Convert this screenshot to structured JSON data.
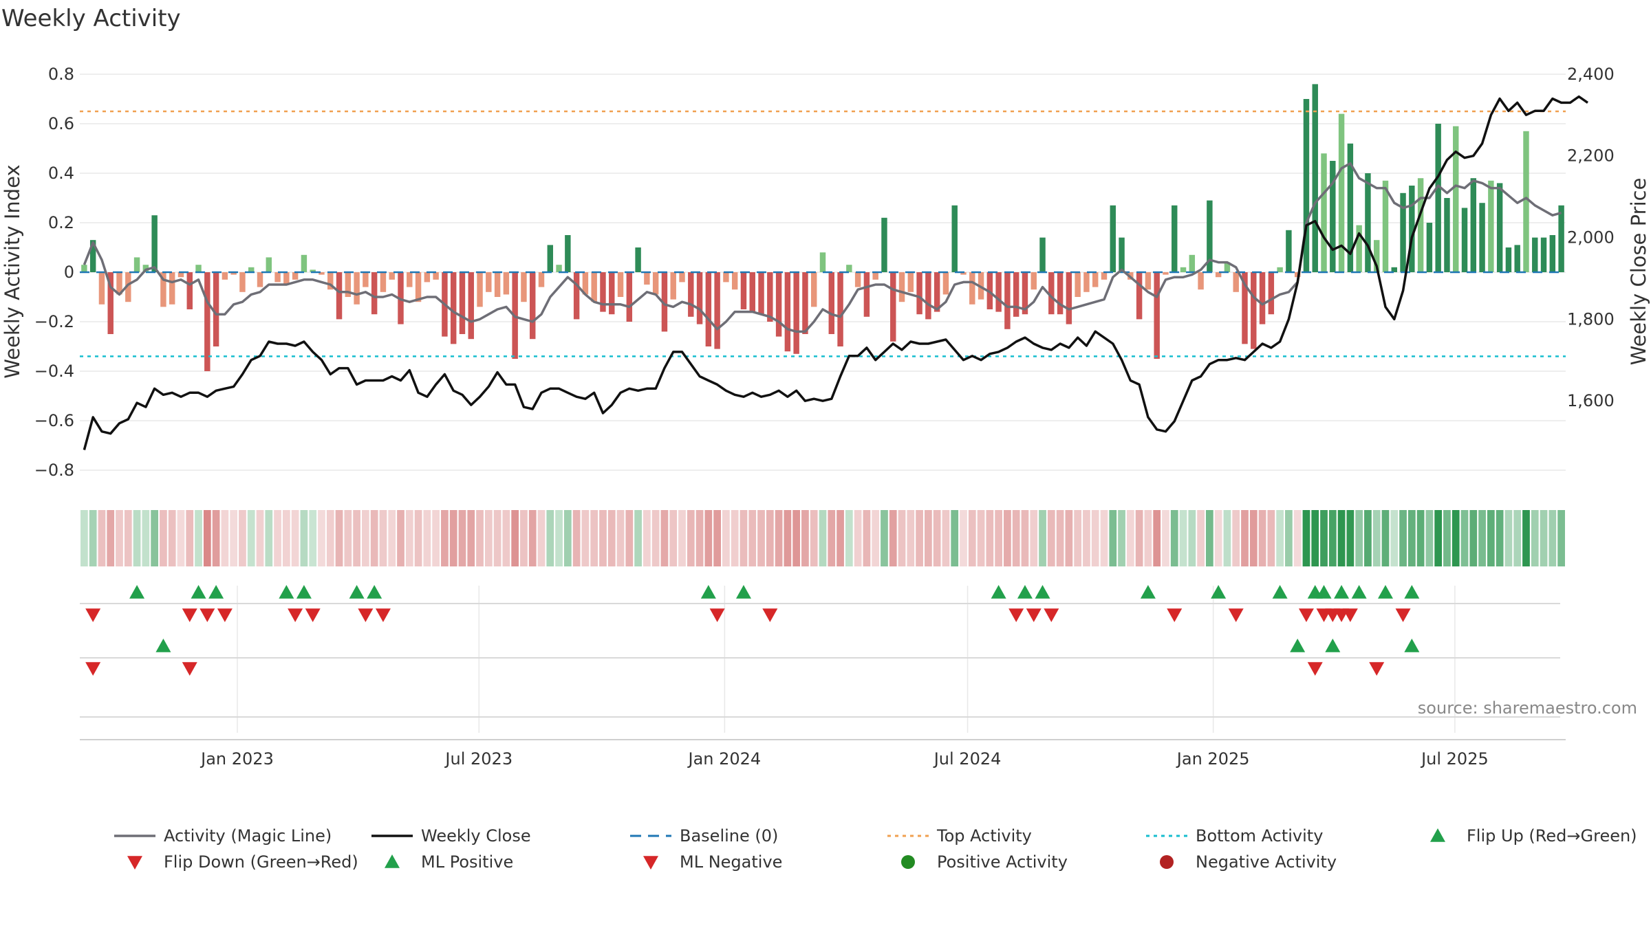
{
  "chart_data": {
    "type": "bar",
    "title": "Weekly Activity",
    "ylabel": "Weekly Activity Index",
    "y2label": "Weekly Close Price",
    "ylim": [
      -0.85,
      0.85
    ],
    "y2lim": [
      1400,
      2430
    ],
    "yticks": [
      0.8,
      0.6,
      0.4,
      0.2,
      0,
      -0.2,
      -0.4,
      -0.6,
      -0.8
    ],
    "ytick_labels": [
      "0.8",
      "0.6",
      "0.4",
      "0.2",
      "0",
      "−0.2",
      "−0.4",
      "−0.6",
      "−0.8"
    ],
    "y2ticks": [
      2400,
      2200,
      2000,
      1800,
      1600
    ],
    "y2tick_labels": [
      "2,400",
      "2,200",
      "2,000",
      "1,800",
      "1,600"
    ],
    "x_start": "2022-09-05",
    "x_end": "2025-09-22",
    "xticks": [
      {
        "date": "2023-01-01",
        "label": "Jan 2023"
      },
      {
        "date": "2023-07-01",
        "label": "Jul 2023"
      },
      {
        "date": "2024-01-01",
        "label": "Jan 2024"
      },
      {
        "date": "2024-07-01",
        "label": "Jul 2024"
      },
      {
        "date": "2025-01-01",
        "label": "Jan 2025"
      },
      {
        "date": "2025-07-01",
        "label": "Jul 2025"
      }
    ],
    "top_activity": 0.65,
    "bottom_activity": -0.34,
    "baseline": 0,
    "activity_values": [
      0.03,
      0.13,
      -0.13,
      -0.25,
      -0.09,
      -0.12,
      0.06,
      0.03,
      0.23,
      -0.14,
      -0.13,
      -0.02,
      -0.15,
      0.03,
      -0.4,
      -0.3,
      -0.03,
      -0.01,
      -0.08,
      0.02,
      -0.06,
      0.06,
      -0.04,
      -0.05,
      -0.03,
      0.07,
      0.01,
      -0.01,
      -0.07,
      -0.19,
      -0.1,
      -0.13,
      -0.06,
      -0.17,
      -0.08,
      -0.03,
      -0.21,
      -0.06,
      -0.12,
      -0.04,
      -0.03,
      -0.26,
      -0.29,
      -0.25,
      -0.27,
      -0.14,
      -0.08,
      -0.1,
      -0.09,
      -0.35,
      -0.12,
      -0.27,
      -0.06,
      0.11,
      0.03,
      0.15,
      -0.19,
      -0.09,
      -0.12,
      -0.16,
      -0.17,
      -0.1,
      -0.2,
      0.1,
      -0.05,
      -0.09,
      -0.24,
      -0.11,
      -0.04,
      -0.18,
      -0.21,
      -0.3,
      -0.31,
      -0.04,
      -0.07,
      -0.15,
      -0.16,
      -0.17,
      -0.2,
      -0.26,
      -0.32,
      -0.33,
      -0.25,
      -0.14,
      0.08,
      -0.25,
      -0.3,
      0.03,
      -0.06,
      -0.18,
      -0.03,
      0.22,
      -0.28,
      -0.12,
      -0.08,
      -0.17,
      -0.19,
      -0.16,
      -0.09,
      0.27,
      -0.01,
      -0.13,
      -0.11,
      -0.15,
      -0.16,
      -0.23,
      -0.18,
      -0.17,
      -0.07,
      0.14,
      -0.17,
      -0.17,
      -0.21,
      -0.1,
      -0.08,
      -0.06,
      -0.03,
      0.27,
      0.14,
      -0.03,
      -0.19,
      -0.07,
      -0.35,
      -0.01,
      0.27,
      0.02,
      0.07,
      -0.07,
      0.29,
      -0.02,
      0.04,
      -0.08,
      -0.29,
      -0.31,
      -0.21,
      -0.17,
      0.02,
      0.17,
      -0.02,
      0.7,
      0.76,
      0.48,
      0.45,
      0.64,
      0.52,
      0.19,
      0.4,
      0.13,
      0.37,
      0.02,
      0.32,
      0.35,
      0.38,
      0.2,
      0.6,
      0.3,
      0.59,
      0.26,
      0.38,
      0.28,
      0.37,
      0.36,
      0.1,
      0.11,
      0.57,
      0.14,
      0.14,
      0.15,
      0.27
    ],
    "magic_line": [
      0.03,
      0.12,
      0.05,
      -0.06,
      -0.09,
      -0.05,
      -0.03,
      0.01,
      0.02,
      -0.03,
      -0.04,
      -0.03,
      -0.05,
      -0.03,
      -0.12,
      -0.17,
      -0.17,
      -0.13,
      -0.12,
      -0.09,
      -0.08,
      -0.05,
      -0.05,
      -0.05,
      -0.04,
      -0.03,
      -0.03,
      -0.04,
      -0.05,
      -0.08,
      -0.08,
      -0.09,
      -0.08,
      -0.1,
      -0.1,
      -0.09,
      -0.11,
      -0.12,
      -0.11,
      -0.1,
      -0.1,
      -0.13,
      -0.16,
      -0.18,
      -0.2,
      -0.19,
      -0.17,
      -0.15,
      -0.14,
      -0.18,
      -0.19,
      -0.2,
      -0.17,
      -0.1,
      -0.06,
      -0.02,
      -0.05,
      -0.09,
      -0.12,
      -0.13,
      -0.13,
      -0.13,
      -0.14,
      -0.11,
      -0.08,
      -0.09,
      -0.13,
      -0.14,
      -0.12,
      -0.13,
      -0.15,
      -0.19,
      -0.23,
      -0.2,
      -0.16,
      -0.16,
      -0.16,
      -0.17,
      -0.18,
      -0.2,
      -0.23,
      -0.24,
      -0.24,
      -0.2,
      -0.15,
      -0.17,
      -0.18,
      -0.13,
      -0.07,
      -0.06,
      -0.05,
      -0.05,
      -0.07,
      -0.08,
      -0.09,
      -0.1,
      -0.13,
      -0.15,
      -0.12,
      -0.05,
      -0.04,
      -0.04,
      -0.06,
      -0.08,
      -0.11,
      -0.14,
      -0.14,
      -0.15,
      -0.12,
      -0.06,
      -0.1,
      -0.13,
      -0.15,
      -0.14,
      -0.13,
      -0.12,
      -0.11,
      -0.02,
      0.01,
      -0.02,
      -0.05,
      -0.08,
      -0.1,
      -0.03,
      -0.02,
      -0.02,
      -0.01,
      0.01,
      0.05,
      0.04,
      0.04,
      0.02,
      -0.05,
      -0.1,
      -0.13,
      -0.11,
      -0.09,
      -0.08,
      -0.04,
      0.2,
      0.28,
      0.32,
      0.36,
      0.42,
      0.44,
      0.38,
      0.36,
      0.34,
      0.34,
      0.28,
      0.26,
      0.27,
      0.3,
      0.3,
      0.35,
      0.32,
      0.35,
      0.34,
      0.37,
      0.36,
      0.34,
      0.34,
      0.31,
      0.28,
      0.3,
      0.27,
      0.25,
      0.23,
      0.24
    ],
    "weekly_close": [
      1480,
      1560,
      1525,
      1520,
      1545,
      1555,
      1595,
      1585,
      1630,
      1615,
      1620,
      1610,
      1620,
      1620,
      1610,
      1625,
      1630,
      1635,
      1665,
      1700,
      1710,
      1745,
      1740,
      1740,
      1735,
      1745,
      1720,
      1700,
      1665,
      1680,
      1680,
      1640,
      1650,
      1650,
      1650,
      1660,
      1650,
      1675,
      1620,
      1610,
      1640,
      1665,
      1625,
      1615,
      1590,
      1610,
      1635,
      1670,
      1640,
      1640,
      1585,
      1580,
      1620,
      1630,
      1630,
      1620,
      1610,
      1605,
      1620,
      1570,
      1590,
      1620,
      1630,
      1625,
      1630,
      1630,
      1680,
      1720,
      1720,
      1690,
      1660,
      1650,
      1640,
      1625,
      1615,
      1610,
      1620,
      1610,
      1615,
      1625,
      1610,
      1625,
      1600,
      1605,
      1600,
      1605,
      1660,
      1710,
      1710,
      1730,
      1700,
      1720,
      1740,
      1725,
      1745,
      1740,
      1740,
      1745,
      1750,
      1725,
      1700,
      1710,
      1700,
      1715,
      1720,
      1730,
      1745,
      1755,
      1740,
      1730,
      1725,
      1740,
      1730,
      1755,
      1735,
      1770,
      1755,
      1740,
      1700,
      1650,
      1640,
      1560,
      1530,
      1525,
      1550,
      1600,
      1650,
      1660,
      1690,
      1700,
      1700,
      1705,
      1700,
      1720,
      1740,
      1730,
      1745,
      1800,
      1890,
      2030,
      2040,
      2000,
      1970,
      1980,
      1960,
      2010,
      1980,
      1930,
      1830,
      1800,
      1870,
      2000,
      2060,
      2120,
      2150,
      2190,
      2210,
      2195,
      2200,
      2230,
      2300,
      2340,
      2310,
      2330,
      2300,
      2310,
      2310,
      2340,
      2330,
      2330,
      2345,
      2330
    ],
    "shade_values": [
      0.03,
      0.13,
      -0.13,
      -0.25,
      -0.09,
      -0.12,
      0.06,
      0.03,
      0.23,
      -0.14,
      -0.13,
      -0.02,
      -0.15,
      0.03,
      -0.4,
      -0.3,
      -0.03,
      -0.01,
      -0.08,
      0.02,
      -0.06,
      0.06,
      -0.04,
      -0.05,
      -0.03,
      0.07,
      0.01,
      -0.01,
      -0.07,
      -0.19,
      -0.1,
      -0.13,
      -0.06,
      -0.17,
      -0.08,
      -0.03,
      -0.21,
      -0.06,
      -0.12,
      -0.04,
      -0.03,
      -0.26,
      -0.29,
      -0.25,
      -0.27,
      -0.14,
      -0.08,
      -0.1,
      -0.09,
      -0.35,
      -0.12,
      -0.27,
      -0.06,
      0.11,
      0.03,
      0.15,
      -0.19,
      -0.09,
      -0.12,
      -0.16,
      -0.17,
      -0.1,
      -0.2,
      0.1,
      -0.05,
      -0.09,
      -0.24,
      -0.11,
      -0.04,
      -0.18,
      -0.21,
      -0.3,
      -0.31,
      -0.04,
      -0.07,
      -0.15,
      -0.16,
      -0.17,
      -0.2,
      -0.26,
      -0.32,
      -0.33,
      -0.25,
      -0.14,
      0.08,
      -0.25,
      -0.3,
      0.03,
      -0.06,
      -0.18,
      -0.03,
      0.22,
      -0.28,
      -0.12,
      -0.08,
      -0.17,
      -0.19,
      -0.16,
      -0.09,
      0.27,
      -0.01,
      -0.13,
      -0.11,
      -0.15,
      -0.16,
      -0.23,
      -0.18,
      -0.17,
      -0.07,
      0.14,
      -0.17,
      -0.17,
      -0.21,
      -0.1,
      -0.08,
      -0.06,
      -0.03,
      0.27,
      0.14,
      -0.03,
      -0.19,
      -0.07,
      -0.35,
      -0.01,
      0.27,
      0.02,
      0.07,
      -0.07,
      0.29,
      -0.02,
      0.04,
      -0.08,
      -0.29,
      -0.31,
      -0.21,
      -0.17,
      0.02,
      0.17,
      -0.02,
      0.7,
      0.76,
      0.48,
      0.45,
      0.64,
      0.52,
      0.19,
      0.4,
      0.13,
      0.37,
      0.02,
      0.32,
      0.35,
      0.38,
      0.2,
      0.6,
      0.3,
      0.59,
      0.26,
      0.38,
      0.28,
      0.37,
      0.36,
      0.1,
      0.11,
      0.57,
      0.14,
      0.14,
      0.15,
      0.27
    ],
    "flip_up_weeks": [
      6,
      13,
      15,
      23,
      25,
      31,
      33,
      71,
      75,
      104,
      107,
      109,
      121,
      129,
      136,
      140,
      141,
      143,
      145,
      148,
      151
    ],
    "flip_down_weeks": [
      1,
      12,
      14,
      16,
      24,
      26,
      32,
      34,
      72,
      78,
      106,
      108,
      110,
      124,
      131,
      139,
      141,
      142,
      143,
      144,
      150
    ],
    "ml_positive_weeks": [
      9,
      138,
      142,
      151
    ],
    "ml_negative_weeks": [
      1,
      12,
      140,
      147
    ],
    "colors": {
      "pos_strong": "#2e8b57",
      "pos_weak": "#7fc47f",
      "neg_strong": "#cc5555",
      "neg_weak": "#e8967a",
      "magic_line": "#6e6e76",
      "weekly_close": "#111111",
      "baseline": "#1f77b4",
      "top_activity": "#f0a050",
      "bottom_activity": "#17becf",
      "marker_up": "#22a04b",
      "marker_down": "#d62728"
    },
    "legend": [
      {
        "label": "Activity (Magic Line)",
        "kind": "line",
        "color": "#6e6e76"
      },
      {
        "label": "Weekly Close",
        "kind": "line",
        "color": "#111111"
      },
      {
        "label": "Baseline (0)",
        "kind": "dash",
        "color": "#1f77b4"
      },
      {
        "label": "Top Activity",
        "kind": "dot",
        "color": "#f0a050"
      },
      {
        "label": "Bottom Activity",
        "kind": "dot",
        "color": "#17becf"
      },
      {
        "label": "Flip Up (Red→Green)",
        "kind": "tri-up",
        "color": "#22a04b"
      },
      {
        "label": "Flip Down (Green→Red)",
        "kind": "tri-down",
        "color": "#d62728"
      },
      {
        "label": "ML Positive",
        "kind": "tri-up",
        "color": "#22a04b"
      },
      {
        "label": "ML Negative",
        "kind": "tri-down",
        "color": "#d62728"
      },
      {
        "label": "Positive Activity",
        "kind": "circle",
        "color": "#228b22"
      },
      {
        "label": "Negative Activity",
        "kind": "circle",
        "color": "#b22222"
      }
    ],
    "source": "source: sharemaestro.com"
  }
}
